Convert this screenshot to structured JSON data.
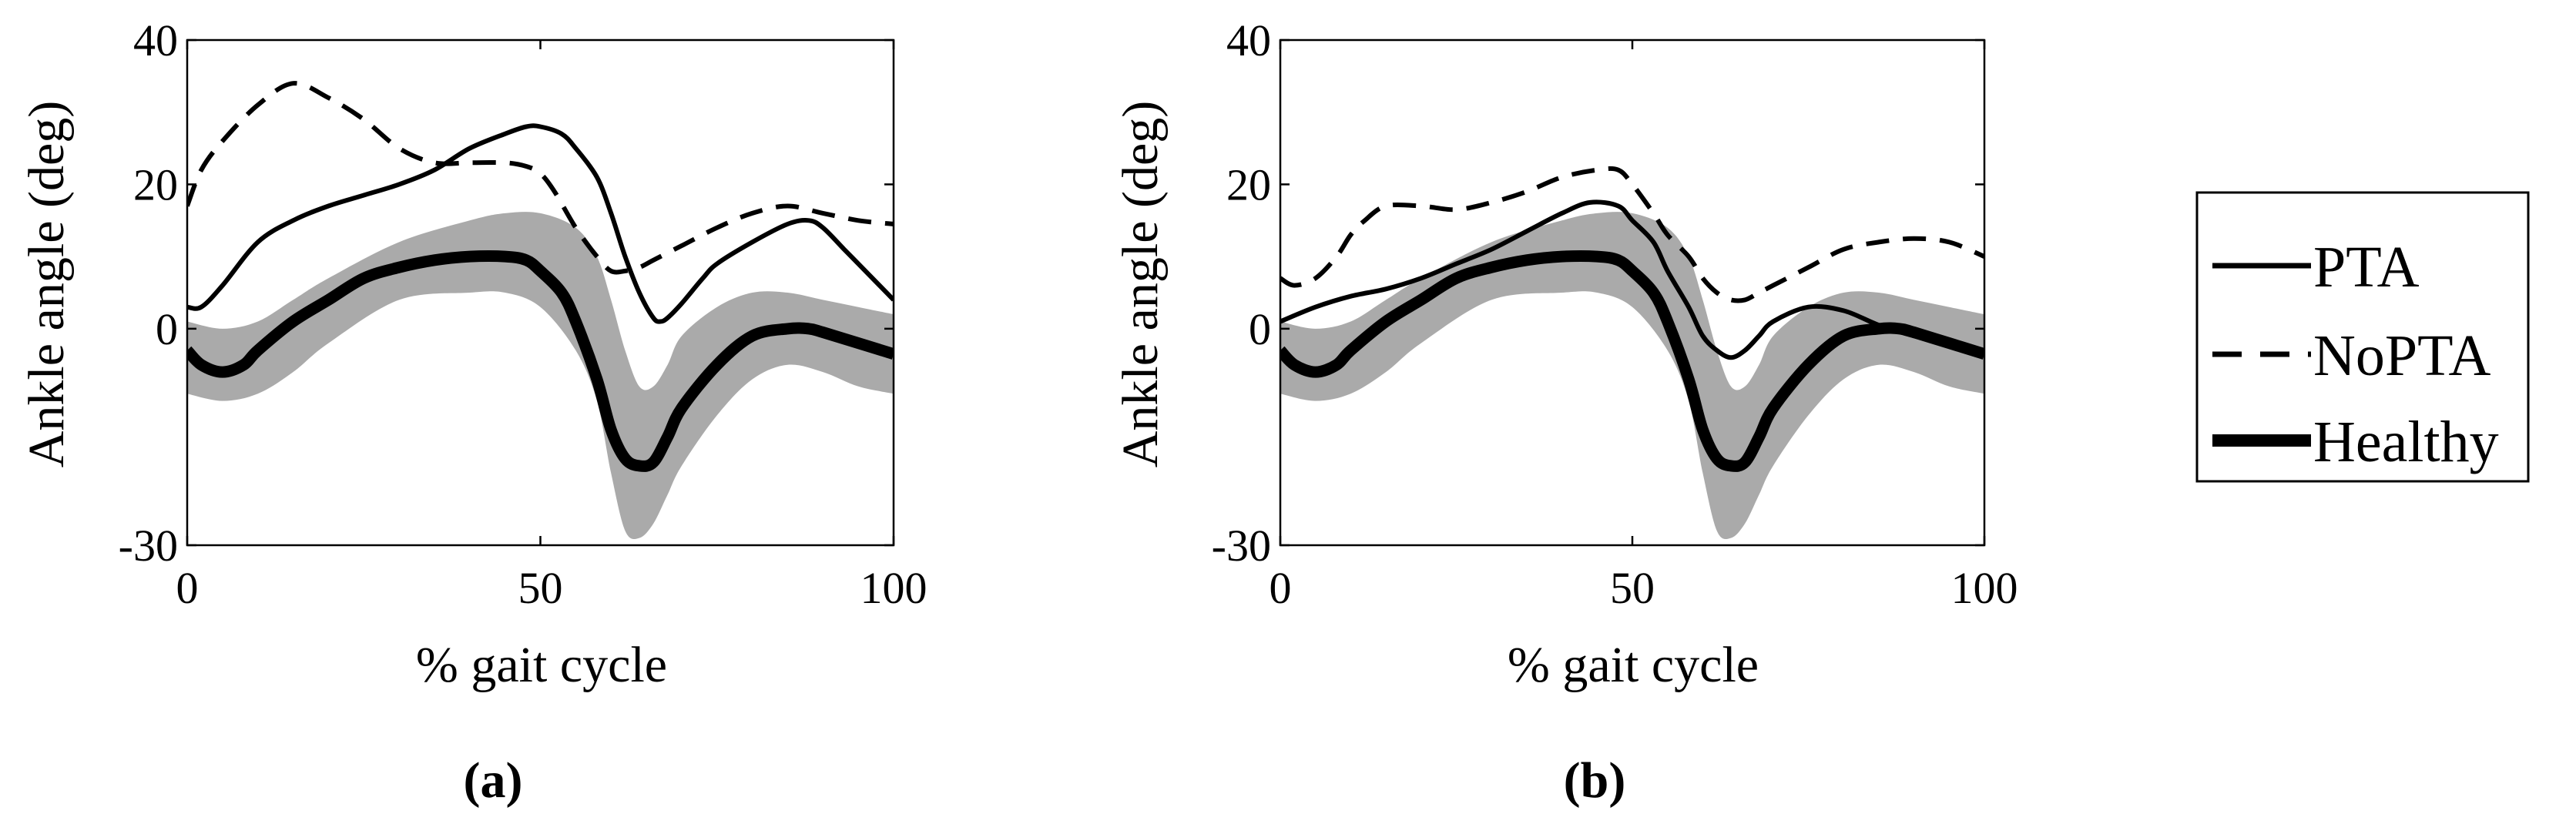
{
  "chart_data": [
    {
      "type": "line",
      "panel_label": "(a)",
      "xlabel": "% gait cycle",
      "ylabel": "Ankle angle (deg)",
      "xlim": [
        0,
        100
      ],
      "ylim": [
        -30,
        40
      ],
      "xticks": [
        "0",
        "50",
        "100"
      ],
      "yticks": [
        "40",
        "20",
        "0",
        "-30"
      ],
      "ytick_values": [
        40,
        20,
        0,
        -30
      ],
      "band": {
        "name": "Healthy range",
        "color": "#aaaaaa",
        "x": [
          0,
          5,
          10,
          15,
          20,
          30,
          40,
          45,
          50,
          55,
          58,
          60,
          62,
          64,
          66,
          68,
          70,
          75,
          80,
          85,
          90,
          95,
          100
        ],
        "upper": [
          1,
          0,
          1,
          4,
          7,
          12,
          15,
          16,
          16,
          14,
          10,
          4,
          -3,
          -8,
          -8,
          -5,
          -1,
          3,
          5,
          5,
          4,
          3,
          2
        ],
        "lower": [
          -9,
          -10,
          -9,
          -6,
          -2,
          4,
          5,
          5,
          3,
          -3,
          -10,
          -20,
          -28,
          -29,
          -27,
          -23,
          -19,
          -12,
          -7,
          -5,
          -6,
          -8,
          -9
        ]
      },
      "series": [
        {
          "name": "PTA",
          "style": "solid",
          "width": "thin",
          "x": [
            0,
            2,
            5,
            10,
            15,
            20,
            25,
            30,
            35,
            40,
            45,
            48,
            50,
            53,
            55,
            58,
            60,
            62,
            64,
            66,
            67,
            68,
            70,
            73,
            75,
            80,
            85,
            88,
            90,
            93,
            95,
            98,
            100
          ],
          "values": [
            3,
            3,
            6,
            12,
            15,
            17,
            18.5,
            20,
            22,
            25,
            27,
            28,
            28,
            27,
            25,
            21,
            16,
            10,
            5,
            1.5,
            1,
            1.5,
            3.5,
            7,
            9,
            12,
            14.5,
            15,
            14,
            11,
            9,
            6,
            4
          ]
        },
        {
          "name": "NoPTA",
          "style": "dashed",
          "width": "thin",
          "x": [
            0,
            2,
            5,
            10,
            15,
            20,
            25,
            30,
            35,
            40,
            45,
            48,
            50,
            52,
            55,
            58,
            60,
            62,
            64,
            66,
            70,
            75,
            80,
            85,
            90,
            95,
            100
          ],
          "values": [
            17,
            22,
            26,
            31,
            34,
            32,
            29,
            25,
            23,
            23,
            23,
            22.5,
            21.5,
            19,
            14,
            10,
            8,
            8,
            8.5,
            9.5,
            11.5,
            14,
            16,
            17,
            16,
            15,
            14.5
          ]
        },
        {
          "name": "Healthy",
          "style": "solid",
          "width": "thick",
          "x": [
            0,
            2,
            5,
            8,
            10,
            15,
            20,
            25,
            30,
            35,
            40,
            45,
            48,
            50,
            53,
            55,
            58,
            60,
            62,
            64,
            66,
            68,
            70,
            75,
            80,
            85,
            88,
            90,
            95,
            100
          ],
          "values": [
            -3,
            -5,
            -6,
            -5,
            -3,
            1,
            4,
            7,
            8.5,
            9.5,
            10,
            10,
            9.5,
            8,
            5,
            1,
            -7,
            -14,
            -18,
            -19,
            -18.5,
            -15,
            -11,
            -5,
            -1,
            0,
            0,
            -0.5,
            -2,
            -3.5
          ]
        }
      ]
    },
    {
      "type": "line",
      "panel_label": "(b)",
      "xlabel": "% gait cycle",
      "ylabel": "Ankle angle (deg)",
      "xlim": [
        0,
        100
      ],
      "ylim": [
        -30,
        40
      ],
      "xticks": [
        "0",
        "50",
        "100"
      ],
      "yticks": [
        "40",
        "20",
        "0",
        "-30"
      ],
      "ytick_values": [
        40,
        20,
        0,
        -30
      ],
      "band": {
        "name": "Healthy range",
        "color": "#aaaaaa",
        "x": [
          0,
          5,
          10,
          15,
          20,
          30,
          40,
          45,
          50,
          55,
          58,
          60,
          62,
          64,
          66,
          68,
          70,
          75,
          80,
          85,
          90,
          95,
          100
        ],
        "upper": [
          1,
          0,
          1,
          4,
          7,
          12,
          15,
          16,
          16,
          14,
          10,
          4,
          -3,
          -8,
          -8,
          -5,
          -1,
          3,
          5,
          5,
          4,
          3,
          2
        ],
        "lower": [
          -9,
          -10,
          -9,
          -6,
          -2,
          4,
          5,
          5,
          3,
          -3,
          -10,
          -20,
          -28,
          -29,
          -27,
          -23,
          -19,
          -12,
          -7,
          -5,
          -6,
          -8,
          -9
        ]
      },
      "series": [
        {
          "name": "PTA",
          "style": "solid",
          "width": "thin",
          "x": [
            0,
            5,
            10,
            15,
            20,
            25,
            30,
            35,
            40,
            44,
            48,
            50,
            53,
            55,
            58,
            60,
            62,
            64,
            66,
            68,
            70,
            75,
            80,
            85,
            90,
            95,
            100
          ],
          "values": [
            1,
            3,
            4.5,
            5.5,
            7,
            9,
            11,
            13.5,
            16,
            17.5,
            17,
            15,
            12,
            8,
            3,
            -1,
            -3,
            -4,
            -3,
            -1,
            1,
            3,
            2.5,
            0.5,
            -1,
            -2,
            -3
          ]
        },
        {
          "name": "NoPTA",
          "style": "dashed",
          "width": "thin",
          "x": [
            0,
            2,
            5,
            8,
            10,
            12,
            15,
            20,
            25,
            30,
            35,
            40,
            45,
            48,
            50,
            53,
            55,
            58,
            60,
            62,
            64,
            66,
            68,
            70,
            75,
            80,
            85,
            90,
            95,
            100
          ],
          "values": [
            7,
            6,
            7,
            10,
            13,
            15,
            17,
            17,
            16.5,
            17.5,
            19,
            21,
            22,
            22,
            20,
            16,
            13,
            10,
            7,
            5,
            4,
            4,
            5,
            6,
            8.5,
            11,
            12,
            12.5,
            12,
            10
          ]
        },
        {
          "name": "Healthy",
          "style": "solid",
          "width": "thick",
          "x": [
            0,
            2,
            5,
            8,
            10,
            15,
            20,
            25,
            30,
            35,
            40,
            45,
            48,
            50,
            53,
            55,
            58,
            60,
            62,
            64,
            66,
            68,
            70,
            75,
            80,
            85,
            88,
            90,
            95,
            100
          ],
          "values": [
            -3,
            -5,
            -6,
            -5,
            -3,
            1,
            4,
            7,
            8.5,
            9.5,
            10,
            10,
            9.5,
            8,
            5,
            1,
            -7,
            -14,
            -18,
            -19,
            -18.5,
            -15,
            -11,
            -5,
            -1,
            0,
            0,
            -0.5,
            -2,
            -3.5
          ]
        }
      ]
    }
  ],
  "legend": {
    "position": "right",
    "items": [
      {
        "label": "PTA",
        "style": "solid",
        "width": "thin"
      },
      {
        "label": "NoPTA",
        "style": "dashed",
        "width": "thin"
      },
      {
        "label": "Healthy",
        "style": "solid",
        "width": "thick"
      }
    ]
  },
  "colors": {
    "line": "#000000",
    "band": "#aaaaaa",
    "background": "#ffffff"
  }
}
